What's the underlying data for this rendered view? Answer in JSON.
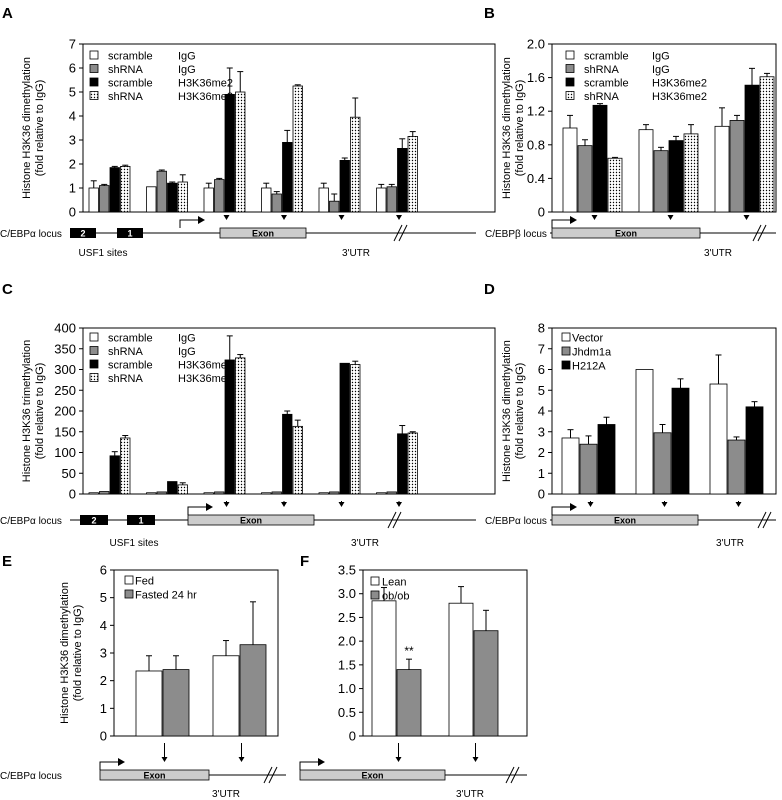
{
  "chart_data": [
    {
      "panel": "A",
      "type": "bar",
      "ylabel": "Histone H3K36 dimethylation",
      "ylabel2": "(fold relative to IgG)",
      "ylim": [
        0,
        7
      ],
      "yticks": [
        0,
        1,
        2,
        3,
        4,
        5,
        6,
        7
      ],
      "legend": [
        [
          "scramble",
          "IgG"
        ],
        [
          "shRNA",
          "IgG"
        ],
        [
          "scramble",
          "H3K36me2"
        ],
        [
          "shRNA",
          "H3K36me2"
        ]
      ],
      "series": [
        {
          "values": [
            1.0,
            1.05,
            1.0,
            1.0,
            1.0,
            1.0
          ],
          "err": [
            0.3,
            0,
            0.2,
            0.2,
            0.2,
            0.15
          ]
        },
        {
          "values": [
            1.1,
            1.7,
            1.35,
            0.75,
            0.45,
            1.05
          ],
          "err": [
            0.05,
            0.05,
            0.05,
            0.1,
            0.3,
            0.1
          ]
        },
        {
          "values": [
            1.85,
            1.2,
            4.9,
            2.9,
            2.15,
            2.65
          ],
          "err": [
            0.05,
            0.05,
            1.1,
            0.5,
            0.1,
            0.4
          ]
        },
        {
          "values": [
            1.9,
            1.25,
            5.0,
            5.25,
            3.95,
            3.15
          ],
          "err": [
            0.05,
            0.3,
            0.85,
            0.05,
            0.8,
            0.2
          ]
        }
      ],
      "arrow_groups": [
        2,
        3,
        4,
        5
      ],
      "locus": {
        "label": "C/EBPα locus",
        "exon": "Exon",
        "sites_label": "USF1 sites",
        "site1": "2",
        "site2": "1",
        "utr": "3'UTR"
      }
    },
    {
      "panel": "B",
      "type": "bar",
      "ylabel": "Histone H3K36 dimethylation",
      "ylabel2": "(fold relative to IgG)",
      "ylim": [
        0,
        2.0
      ],
      "yticks": [
        0,
        0.4,
        0.8,
        1.2,
        1.6,
        2.0
      ],
      "ytick_labels": [
        "0",
        "0.4",
        "0.8",
        "1.2",
        "1.6",
        "2.0"
      ],
      "legend": [
        [
          "scramble",
          "IgG"
        ],
        [
          "shRNA",
          "IgG"
        ],
        [
          "scramble",
          "H3K36me2"
        ],
        [
          "shRNA",
          "H3K36me2"
        ]
      ],
      "series": [
        {
          "values": [
            1.0,
            0.98,
            1.02
          ],
          "err": [
            0.15,
            0.06,
            0.22
          ]
        },
        {
          "values": [
            0.79,
            0.73,
            1.09
          ],
          "err": [
            0.07,
            0.04,
            0.06
          ]
        },
        {
          "values": [
            1.27,
            0.85,
            1.51
          ],
          "err": [
            0.02,
            0.05,
            0.2
          ]
        },
        {
          "values": [
            0.64,
            0.93,
            1.61
          ],
          "err": [
            0.01,
            0.11,
            0.04
          ]
        }
      ],
      "arrow_groups": [
        0,
        1,
        2
      ],
      "locus": {
        "label": "C/EBPβ locus",
        "exon": "Exon",
        "utr": "3'UTR"
      }
    },
    {
      "panel": "C",
      "type": "bar",
      "ylabel": "Histone H3K36 trimethylation",
      "ylabel2": "(fold relative to IgG)",
      "ylim": [
        0,
        400
      ],
      "yticks": [
        0,
        50,
        100,
        150,
        200,
        250,
        300,
        350,
        400
      ],
      "legend": [
        [
          "scramble",
          "IgG"
        ],
        [
          "shRNA",
          "IgG"
        ],
        [
          "scramble",
          "H3K36me3"
        ],
        [
          "shRNA",
          "H3K36me3"
        ]
      ],
      "series": [
        {
          "values": [
            3,
            3,
            3,
            3,
            3,
            3
          ],
          "err": [
            0,
            0,
            0,
            0,
            0,
            0
          ]
        },
        {
          "values": [
            6,
            5,
            5,
            5,
            5,
            5
          ],
          "err": [
            0,
            0,
            0,
            0,
            0,
            0
          ]
        },
        {
          "values": [
            92,
            30,
            323,
            192,
            315,
            145
          ],
          "err": [
            10,
            0,
            58,
            8,
            0,
            20
          ]
        },
        {
          "values": [
            135,
            22,
            328,
            163,
            312,
            147
          ],
          "err": [
            6,
            5,
            8,
            15,
            8,
            3
          ]
        }
      ],
      "arrow_groups": [
        2,
        3,
        4,
        5
      ],
      "locus": {
        "label": "C/EBPα locus",
        "exon": "Exon",
        "sites_label": "USF1 sites",
        "site1": "2",
        "site2": "1",
        "utr": "3'UTR"
      }
    },
    {
      "panel": "D",
      "type": "bar",
      "ylabel": "Histone H3K36 dimethylation",
      "ylabel2": "(fold relative to IgG)",
      "ylim": [
        0,
        8
      ],
      "yticks": [
        0,
        1,
        2,
        3,
        4,
        5,
        6,
        7,
        8
      ],
      "legend": [
        [
          "Vector"
        ],
        [
          "Jhdm1a"
        ],
        [
          "H212A"
        ]
      ],
      "series": [
        {
          "values": [
            2.7,
            6.0,
            5.3
          ],
          "err": [
            0.4,
            0,
            1.4
          ]
        },
        {
          "values": [
            2.4,
            2.95,
            2.6
          ],
          "err": [
            0.4,
            0.4,
            0.15
          ]
        },
        {
          "values": [
            3.35,
            5.1,
            4.2
          ],
          "err": [
            0.35,
            0.45,
            0.25
          ]
        }
      ],
      "arrow_groups": [
        0,
        1,
        2
      ],
      "locus": {
        "label": "C/EBPα locus",
        "exon": "Exon",
        "utr": "3'UTR"
      }
    },
    {
      "panel": "E",
      "type": "bar",
      "ylabel": "Histone H3K36 dimethylation",
      "ylabel2": "(fold relative to IgG)",
      "ylim": [
        0,
        6
      ],
      "yticks": [
        0,
        1,
        2,
        3,
        4,
        5,
        6
      ],
      "legend": [
        [
          "Fed"
        ],
        [
          "Fasted 24 hr"
        ]
      ],
      "series": [
        {
          "values": [
            2.35,
            2.9
          ],
          "err": [
            0.55,
            0.55
          ]
        },
        {
          "values": [
            2.4,
            3.3
          ],
          "err": [
            0.5,
            1.55
          ]
        }
      ],
      "arrow_groups": [
        0,
        1
      ],
      "locus": {
        "label": "C/EBPα locus",
        "exon": "Exon",
        "utr": "3'UTR"
      }
    },
    {
      "panel": "F",
      "type": "bar",
      "ylim": [
        0,
        3.5
      ],
      "yticks": [
        0,
        0.5,
        1,
        1.5,
        2,
        2.5,
        3,
        3.5
      ],
      "ytick_labels": [
        "0",
        "0.5",
        "1.0",
        "1.5",
        "2.0",
        "2.5",
        "3.0",
        "3.5"
      ],
      "legend": [
        [
          "Lean"
        ],
        [
          "ob/ob"
        ]
      ],
      "series": [
        {
          "values": [
            2.85,
            2.8
          ],
          "err": [
            0.28,
            0.35
          ]
        },
        {
          "values": [
            1.4,
            2.22
          ],
          "err": [
            0.22,
            0.43
          ]
        }
      ],
      "annotation": "**",
      "arrow_groups": [
        0,
        1
      ],
      "locus": {
        "exon": "Exon",
        "utr": "3'UTR"
      }
    }
  ]
}
